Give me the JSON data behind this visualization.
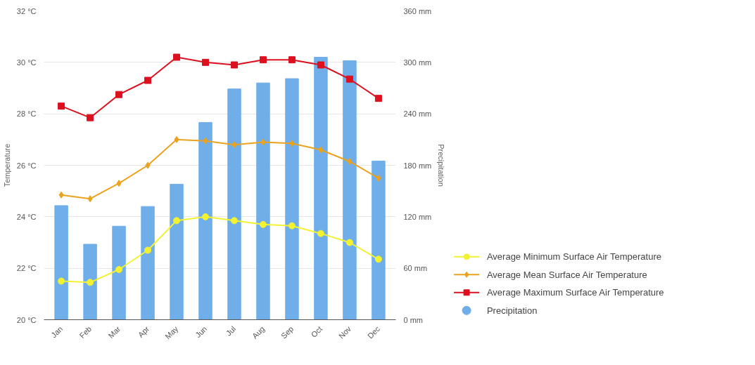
{
  "chart_data": {
    "type": "line",
    "ylabel": "Temperature",
    "y2label": "Precipitation",
    "categories": [
      "Jan",
      "Feb",
      "Mar",
      "Apr",
      "May",
      "Jun",
      "Jul",
      "Aug",
      "Sep",
      "Oct",
      "Nov",
      "Dec"
    ],
    "ylim": [
      20,
      32
    ],
    "yticks": [
      {
        "value": 20,
        "label": "20 °C"
      },
      {
        "value": 22,
        "label": "22 °C"
      },
      {
        "value": 24,
        "label": "24 °C"
      },
      {
        "value": 26,
        "label": "26 °C"
      },
      {
        "value": 28,
        "label": "28 °C"
      },
      {
        "value": 30,
        "label": "30 °C"
      },
      {
        "value": 32,
        "label": "32 °C"
      }
    ],
    "y2lim": [
      0,
      360
    ],
    "y2ticks": [
      {
        "value": 0,
        "label": "0 mm"
      },
      {
        "value": 60,
        "label": "60 mm"
      },
      {
        "value": 120,
        "label": "120 mm"
      },
      {
        "value": 180,
        "label": "180 mm"
      },
      {
        "value": 240,
        "label": "240 mm"
      },
      {
        "value": 300,
        "label": "300 mm"
      },
      {
        "value": 360,
        "label": "360 mm"
      }
    ],
    "grid": "y",
    "legend": "bottom right",
    "series": [
      {
        "name": "Average Minimum Surface Air Temperature",
        "marker": "circle",
        "color": "#f2f233",
        "values": [
          21.5,
          21.45,
          21.95,
          22.7,
          23.85,
          24.0,
          23.85,
          23.7,
          23.65,
          23.35,
          23.0,
          22.35
        ]
      },
      {
        "name": "Average Mean Surface Air Temperature",
        "marker": "diamond",
        "color": "#eba21e",
        "values": [
          24.85,
          24.7,
          25.3,
          26.0,
          27.0,
          26.95,
          26.8,
          26.9,
          26.85,
          26.6,
          26.15,
          25.5
        ]
      },
      {
        "name": "Average Maximum Surface Air Temperature",
        "marker": "square",
        "color": "#dd1020",
        "values": [
          28.3,
          27.85,
          28.75,
          29.3,
          30.2,
          30.0,
          29.9,
          30.1,
          30.1,
          29.9,
          29.35,
          28.6
        ]
      },
      {
        "name": "Precipitation",
        "type": "bar",
        "axis": "y2",
        "color": "#6faee8",
        "values": [
          133,
          88,
          109,
          132,
          158,
          230,
          269,
          276,
          281,
          306,
          302,
          185
        ]
      }
    ]
  }
}
